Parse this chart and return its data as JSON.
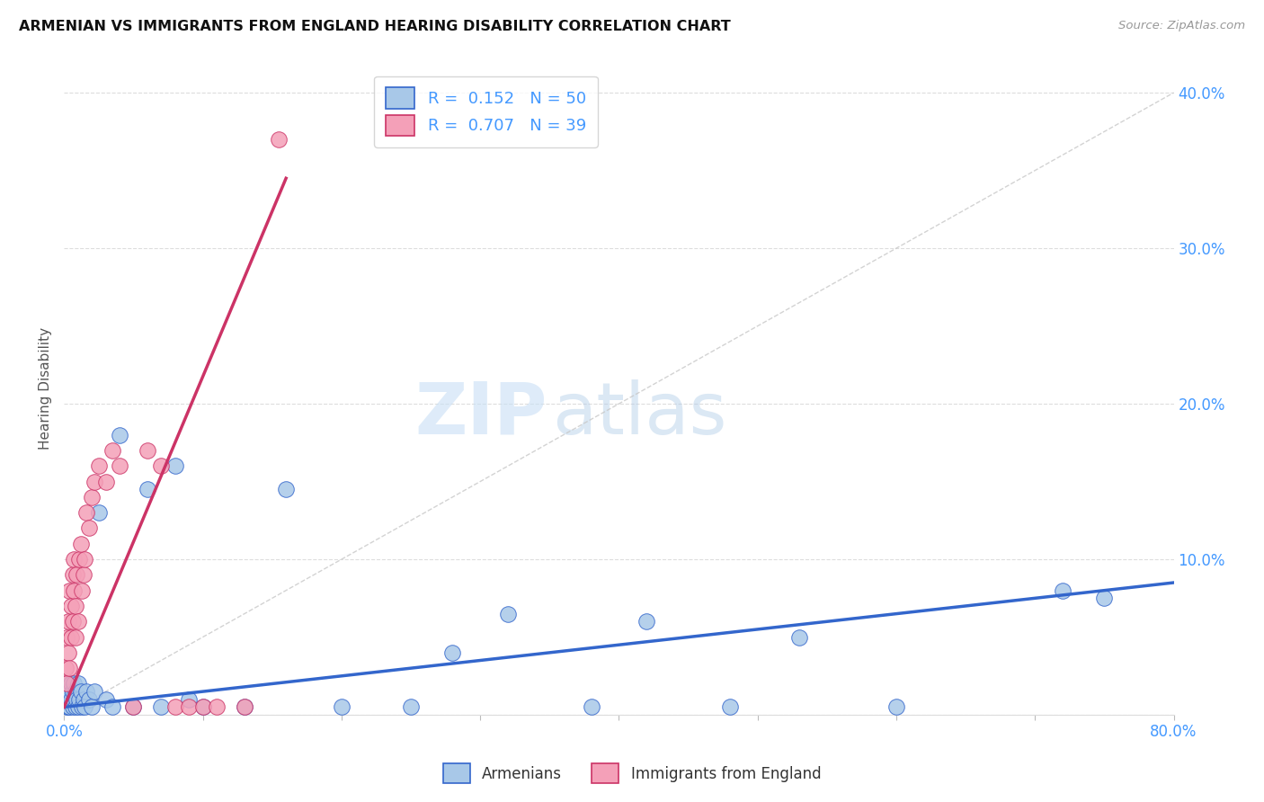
{
  "title": "ARMENIAN VS IMMIGRANTS FROM ENGLAND HEARING DISABILITY CORRELATION CHART",
  "source": "Source: ZipAtlas.com",
  "ylabel": "Hearing Disability",
  "xlim": [
    0.0,
    0.8
  ],
  "ylim": [
    0.0,
    0.42
  ],
  "xticks": [
    0.0,
    0.1,
    0.2,
    0.3,
    0.4,
    0.5,
    0.6,
    0.7,
    0.8
  ],
  "xtick_labels": [
    "0.0%",
    "",
    "",
    "",
    "",
    "",
    "",
    "",
    "80.0%"
  ],
  "yticks": [
    0.0,
    0.1,
    0.2,
    0.3,
    0.4
  ],
  "ytick_labels_right": [
    "",
    "10.0%",
    "20.0%",
    "30.0%",
    "40.0%"
  ],
  "color_armenian": "#a8c8e8",
  "color_england": "#f4a0b8",
  "color_line_armenian": "#3366cc",
  "color_line_england": "#cc3366",
  "color_diag": "#c8c8c8",
  "watermark_zip": "ZIP",
  "watermark_atlas": "atlas",
  "armenian_x": [
    0.001,
    0.002,
    0.002,
    0.003,
    0.003,
    0.004,
    0.004,
    0.005,
    0.005,
    0.006,
    0.006,
    0.007,
    0.007,
    0.008,
    0.008,
    0.009,
    0.01,
    0.01,
    0.011,
    0.012,
    0.013,
    0.014,
    0.015,
    0.016,
    0.018,
    0.02,
    0.022,
    0.025,
    0.03,
    0.035,
    0.04,
    0.05,
    0.06,
    0.07,
    0.08,
    0.09,
    0.1,
    0.13,
    0.16,
    0.2,
    0.25,
    0.28,
    0.32,
    0.38,
    0.42,
    0.48,
    0.53,
    0.6,
    0.72,
    0.75
  ],
  "armenian_y": [
    0.02,
    0.015,
    0.005,
    0.01,
    0.005,
    0.015,
    0.005,
    0.01,
    0.02,
    0.005,
    0.015,
    0.01,
    0.02,
    0.005,
    0.015,
    0.01,
    0.005,
    0.02,
    0.01,
    0.015,
    0.005,
    0.01,
    0.005,
    0.015,
    0.01,
    0.005,
    0.015,
    0.13,
    0.01,
    0.005,
    0.18,
    0.005,
    0.145,
    0.005,
    0.16,
    0.01,
    0.005,
    0.005,
    0.145,
    0.005,
    0.005,
    0.04,
    0.065,
    0.005,
    0.06,
    0.005,
    0.05,
    0.005,
    0.08,
    0.075
  ],
  "england_x": [
    0.001,
    0.002,
    0.002,
    0.003,
    0.003,
    0.004,
    0.004,
    0.005,
    0.005,
    0.006,
    0.006,
    0.007,
    0.007,
    0.008,
    0.008,
    0.009,
    0.01,
    0.011,
    0.012,
    0.013,
    0.014,
    0.015,
    0.016,
    0.018,
    0.02,
    0.022,
    0.025,
    0.03,
    0.035,
    0.04,
    0.05,
    0.06,
    0.07,
    0.08,
    0.09,
    0.1,
    0.11,
    0.13,
    0.155
  ],
  "england_y": [
    0.03,
    0.05,
    0.02,
    0.06,
    0.04,
    0.08,
    0.03,
    0.07,
    0.05,
    0.09,
    0.06,
    0.08,
    0.1,
    0.05,
    0.07,
    0.09,
    0.06,
    0.1,
    0.11,
    0.08,
    0.09,
    0.1,
    0.13,
    0.12,
    0.14,
    0.15,
    0.16,
    0.15,
    0.17,
    0.16,
    0.005,
    0.17,
    0.16,
    0.005,
    0.005,
    0.005,
    0.005,
    0.005,
    0.37
  ],
  "arm_line_x": [
    0.0,
    0.8
  ],
  "arm_line_y": [
    0.005,
    0.085
  ],
  "eng_line_x": [
    0.0,
    0.16
  ],
  "eng_line_y": [
    0.005,
    0.345
  ]
}
